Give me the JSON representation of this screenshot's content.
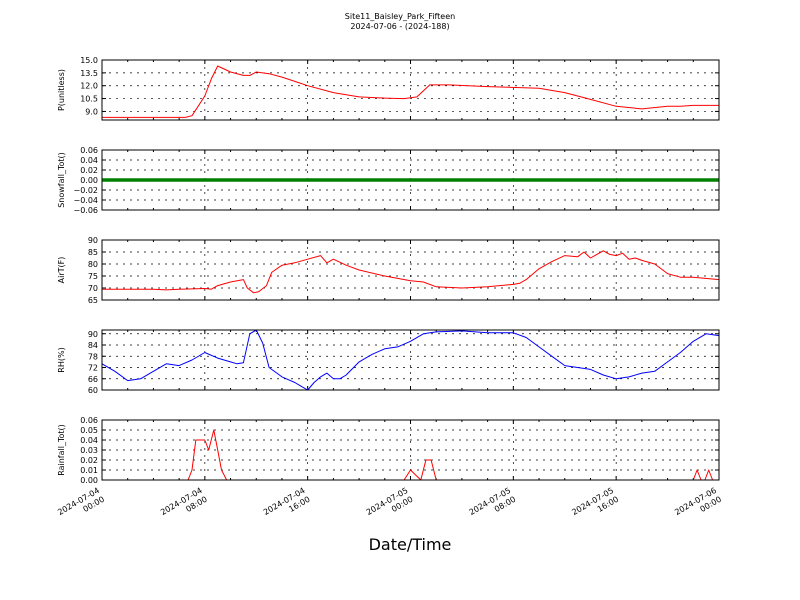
{
  "chart_data": {
    "type": "line",
    "title": "Site11_Baisley_Park_Fifteen",
    "subtitle": "2024-07-06 - (2024-188)",
    "xlabel": "Date/Time",
    "x_ticks": [
      "2024-07-04\n00:00",
      "2024-07-04\n08:00",
      "2024-07-04\n16:00",
      "2024-07-05\n00:00",
      "2024-07-05\n08:00",
      "2024-07-05\n16:00",
      "2024-07-06\n00:00"
    ],
    "x_range_hours": [
      0,
      48
    ],
    "grid": true,
    "panels": [
      {
        "ylabel": "P(unitless)",
        "ylim": [
          8.0,
          15.0
        ],
        "yticks": [
          "9.0",
          "10.5",
          "12.0",
          "13.5",
          "15.0"
        ],
        "ytick_values": [
          9.0,
          10.5,
          12.0,
          13.5,
          15.0
        ],
        "color": "#ff0000",
        "x": [
          0,
          6.5,
          7,
          8,
          8.5,
          9,
          10,
          11,
          11.5,
          12,
          13,
          14,
          15,
          16,
          18,
          20,
          22,
          23.5,
          24.5,
          25.5,
          27,
          30,
          34,
          36,
          38,
          40,
          42,
          44,
          45,
          46,
          47,
          48
        ],
        "y": [
          8.3,
          8.3,
          8.5,
          10.8,
          12.8,
          14.3,
          13.6,
          13.2,
          13.2,
          13.6,
          13.4,
          13.0,
          12.5,
          12.0,
          11.2,
          10.7,
          10.55,
          10.5,
          10.7,
          12.1,
          12.1,
          11.9,
          11.7,
          11.2,
          10.4,
          9.6,
          9.3,
          9.6,
          9.6,
          9.7,
          9.7,
          9.7
        ]
      },
      {
        "ylabel": "Snowfall_Tot()",
        "ylim": [
          -0.06,
          0.06
        ],
        "yticks": [
          "−0.06",
          "−0.04",
          "−0.02",
          "0.00",
          "0.02",
          "0.04",
          "0.06"
        ],
        "ytick_values": [
          -0.06,
          -0.04,
          -0.02,
          0.0,
          0.02,
          0.04,
          0.06
        ],
        "color": "#008000",
        "x": [
          0,
          48
        ],
        "y": [
          0.0,
          0.0
        ]
      },
      {
        "ylabel": "AirT(F)",
        "ylim": [
          65,
          90
        ],
        "yticks": [
          "65",
          "70",
          "75",
          "80",
          "85",
          "90"
        ],
        "ytick_values": [
          65,
          70,
          75,
          80,
          85,
          90
        ],
        "color": "#ff0000",
        "x": [
          0,
          4,
          5,
          6,
          8,
          8.5,
          9,
          10,
          11,
          11.3,
          11.8,
          12.2,
          12.8,
          13.2,
          14,
          15,
          16,
          17,
          17.5,
          18,
          19,
          20,
          22,
          23,
          24,
          25,
          26,
          28,
          30,
          32,
          32.5,
          33,
          34,
          35,
          36,
          37,
          37.5,
          38,
          38.5,
          39,
          39.5,
          40,
          40.5,
          41,
          41.5,
          42,
          43,
          44,
          45,
          46,
          48
        ],
        "y": [
          69.5,
          69.5,
          69.2,
          69.5,
          69.8,
          69.5,
          71.0,
          72.5,
          73.5,
          70.0,
          68.0,
          68.5,
          71.0,
          76.5,
          79.5,
          80.5,
          82.0,
          83.5,
          80.5,
          82.0,
          79.5,
          77.5,
          75.0,
          74.0,
          73.0,
          72.5,
          70.5,
          70.0,
          70.5,
          71.5,
          72.0,
          73.5,
          78.0,
          81.0,
          83.5,
          83.0,
          85.0,
          82.5,
          84.0,
          85.5,
          84.0,
          83.5,
          84.5,
          82.0,
          82.5,
          81.5,
          80.0,
          76.0,
          74.5,
          74.5,
          73.5
        ]
      },
      {
        "ylabel": "RH(%)",
        "ylim": [
          60,
          92
        ],
        "yticks": [
          "60",
          "66",
          "72",
          "78",
          "84",
          "90"
        ],
        "ytick_values": [
          60,
          66,
          72,
          78,
          84,
          90
        ],
        "color": "#0000ff",
        "x": [
          0,
          1,
          2,
          3,
          4,
          5,
          6,
          7,
          8,
          9,
          10,
          10.5,
          11,
          11.5,
          12,
          12.5,
          13,
          14,
          15,
          15.5,
          16,
          16.5,
          17,
          17.5,
          18,
          18.5,
          19,
          20,
          21,
          22,
          23,
          24,
          25,
          26,
          28,
          30,
          32,
          33,
          34,
          35,
          36,
          37,
          38,
          39,
          40,
          41,
          42,
          43,
          44,
          45,
          46,
          47,
          48
        ],
        "y": [
          74,
          70,
          65,
          66,
          70,
          74,
          73,
          76,
          80,
          77,
          75,
          74,
          74.5,
          90,
          92,
          85,
          72,
          67,
          64,
          62,
          60,
          64,
          67,
          69,
          66,
          66,
          68,
          75,
          79,
          82,
          83,
          86,
          90,
          91,
          91.5,
          90.5,
          90.5,
          88,
          83,
          78,
          73,
          72,
          71,
          68,
          66,
          67,
          69,
          70,
          75,
          80,
          86,
          90,
          89
        ]
      },
      {
        "ylabel": "Rainfall_Tot()",
        "ylim": [
          0.0,
          0.06
        ],
        "yticks": [
          "0.00",
          "0.01",
          "0.02",
          "0.03",
          "0.04",
          "0.05",
          "0.06"
        ],
        "ytick_values": [
          0.0,
          0.01,
          0.02,
          0.03,
          0.04,
          0.05,
          0.06
        ],
        "color": "#ff0000",
        "x": [
          0,
          6.7,
          7.0,
          7.3,
          7.8,
          8.0,
          8.3,
          8.7,
          9.0,
          9.3,
          9.7,
          10.0,
          23.0,
          23.5,
          24.0,
          24.8,
          25.2,
          25.6,
          26.0,
          46.0,
          46.3,
          46.6,
          46.9,
          47.2,
          47.5,
          48
        ],
        "y": [
          0.0,
          0.0,
          0.01,
          0.04,
          0.04,
          0.04,
          0.03,
          0.05,
          0.03,
          0.01,
          0.0,
          0.0,
          0.0,
          0.0,
          0.01,
          0.0,
          0.02,
          0.02,
          0.0,
          0.0,
          0.01,
          0.0,
          0.0,
          0.01,
          0.0,
          0.0
        ]
      }
    ]
  }
}
